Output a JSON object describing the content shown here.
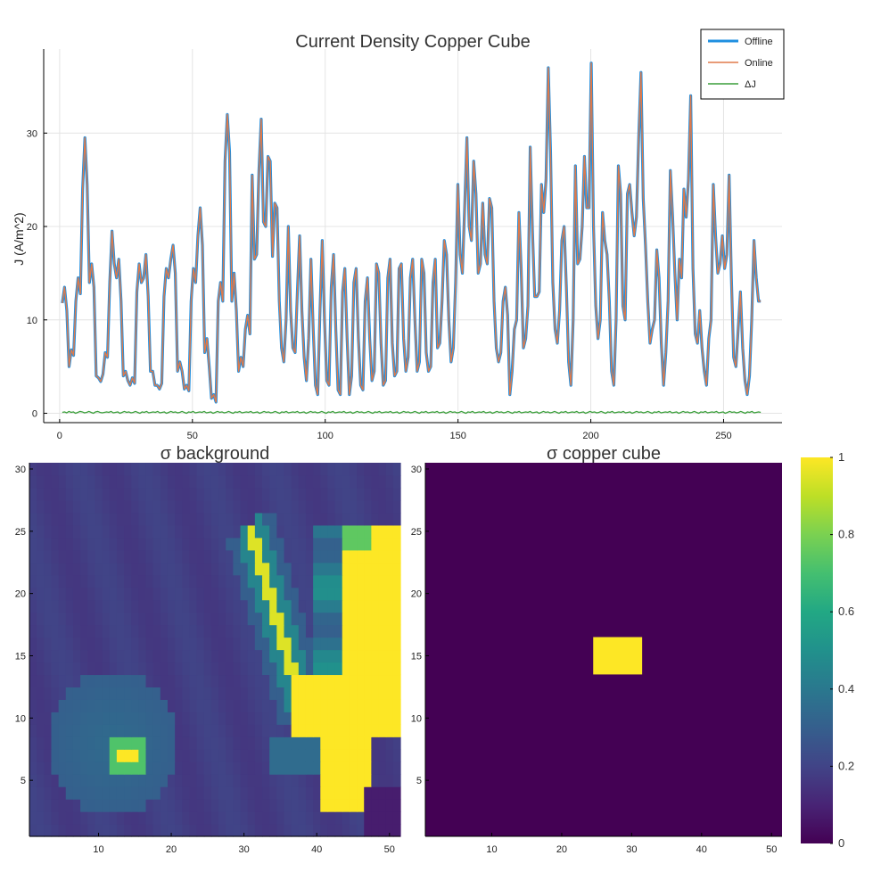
{
  "chart_data": [
    {
      "type": "line",
      "title": "Current Density Copper Cube",
      "xlabel": "",
      "ylabel": "J (A/m^2)",
      "xlim": [
        -6,
        272
      ],
      "ylim": [
        -1,
        39
      ],
      "xticks": [
        0,
        50,
        100,
        150,
        200,
        250
      ],
      "yticks": [
        0,
        10,
        20,
        30
      ],
      "grid": true,
      "legend_position": "top-right",
      "series": [
        {
          "name": "Offline",
          "color": "#1f8fe0",
          "x0": 1,
          "values": [
            11.8,
            13.5,
            11.0,
            5.0,
            6.8,
            6.2,
            12.0,
            14.5,
            12.8,
            24.0,
            29.5,
            24.5,
            14.0,
            16.0,
            13.5,
            4.0,
            3.8,
            3.4,
            4.2,
            6.5,
            6.0,
            14.0,
            19.5,
            16.0,
            14.5,
            16.5,
            12.0,
            4.0,
            4.5,
            3.5,
            3.0,
            3.8,
            3.2,
            13.0,
            16.0,
            14.0,
            14.5,
            17.0,
            12.5,
            4.5,
            4.5,
            3.0,
            3.0,
            2.6,
            3.2,
            12.5,
            15.5,
            14.5,
            16.5,
            18.0,
            15.0,
            4.5,
            5.5,
            4.5,
            2.6,
            3.0,
            2.4,
            12.0,
            15.5,
            14.0,
            19.0,
            22.0,
            18.0,
            6.5,
            8.0,
            5.0,
            1.6,
            2.0,
            1.2,
            12.0,
            14.0,
            12.0,
            27.0,
            32.0,
            28.0,
            12.0,
            15.0,
            11.0,
            4.5,
            6.0,
            5.0,
            9.0,
            10.5,
            8.5,
            25.5,
            16.5,
            17.0,
            26.0,
            31.5,
            20.5,
            20.0,
            27.5,
            27.0,
            16.8,
            22.5,
            22.0,
            12.0,
            7.0,
            5.5,
            10.0,
            20.0,
            11.0,
            7.0,
            6.5,
            13.0,
            19.0,
            11.0,
            6.0,
            3.5,
            8.0,
            16.5,
            9.0,
            3.0,
            2.0,
            11.0,
            18.5,
            10.0,
            3.5,
            3.0,
            13.5,
            17.0,
            9.0,
            2.5,
            2.0,
            13.0,
            15.5,
            8.0,
            2.0,
            4.0,
            14.0,
            15.5,
            8.0,
            3.0,
            2.5,
            12.0,
            14.5,
            8.0,
            3.5,
            4.5,
            16.0,
            15.0,
            7.5,
            3.0,
            3.5,
            14.5,
            16.5,
            7.5,
            4.0,
            4.5,
            15.5,
            16.0,
            8.0,
            4.5,
            6.0,
            14.5,
            16.5,
            10.0,
            4.5,
            5.5,
            16.5,
            15.0,
            6.5,
            4.5,
            5.0,
            14.0,
            16.5,
            7.0,
            7.5,
            12.0,
            18.5,
            17.0,
            10.0,
            5.5,
            7.0,
            14.0,
            24.5,
            17.0,
            15.0,
            22.0,
            29.5,
            20.0,
            18.5,
            27.0,
            23.5,
            15.0,
            16.0,
            22.5,
            17.0,
            16.0,
            23.0,
            22.0,
            12.0,
            7.0,
            5.5,
            6.5,
            12.0,
            13.5,
            10.5,
            2.0,
            4.5,
            9.0,
            10.0,
            21.5,
            15.5,
            7.0,
            8.0,
            11.5,
            28.5,
            19.5,
            12.5,
            12.5,
            13.0,
            24.5,
            21.5,
            25.0,
            37.0,
            28.0,
            14.0,
            9.0,
            7.5,
            11.0,
            18.5,
            20.0,
            13.5,
            5.5,
            3.0,
            10.0,
            26.5,
            16.0,
            16.5,
            20.0,
            27.5,
            22.0,
            22.0,
            37.5,
            20.0,
            11.5,
            8.0,
            10.0,
            21.5,
            18.5,
            17.0,
            12.0,
            4.5,
            3.0,
            10.0,
            26.5,
            23.5,
            11.5,
            10.0,
            23.5,
            24.5,
            21.5,
            19.0,
            21.0,
            29.5,
            36.5,
            23.0,
            18.0,
            12.0,
            7.5,
            9.0,
            10.0,
            17.5,
            14.5,
            7.5,
            3.0,
            6.5,
            12.0,
            26.0,
            21.0,
            15.0,
            10.0,
            16.5,
            14.5,
            24.0,
            21.0,
            25.0,
            34.0,
            15.5,
            8.5,
            7.5,
            11.0,
            7.0,
            4.5,
            3.0,
            8.0,
            10.0,
            24.5,
            19.0,
            15.0,
            16.0,
            19.0,
            15.5,
            17.0,
            25.5,
            14.5,
            6.0,
            5.0,
            9.0,
            13.0,
            7.0,
            3.5,
            2.0,
            4.0,
            10.0,
            18.5,
            14.5,
            12.0,
            12.0
          ]
        },
        {
          "name": "Online",
          "color": "#e07a4a",
          "x0": 1,
          "values": [
            11.8,
            13.5,
            11.0,
            5.0,
            6.8,
            6.2,
            12.0,
            14.5,
            12.8,
            24.0,
            29.5,
            24.5,
            14.0,
            16.0,
            13.5,
            4.0,
            3.8,
            3.4,
            4.2,
            6.5,
            6.0,
            14.0,
            19.5,
            16.0,
            14.5,
            16.5,
            12.0,
            4.0,
            4.5,
            3.5,
            3.0,
            3.8,
            3.2,
            13.0,
            16.0,
            14.0,
            14.5,
            17.0,
            12.5,
            4.5,
            4.5,
            3.0,
            3.0,
            2.6,
            3.2,
            12.5,
            15.5,
            14.5,
            16.5,
            18.0,
            15.0,
            4.5,
            5.5,
            4.5,
            2.6,
            3.0,
            2.4,
            12.0,
            15.5,
            14.0,
            19.0,
            22.0,
            18.0,
            6.5,
            8.0,
            5.0,
            1.6,
            2.0,
            1.2,
            12.0,
            14.0,
            12.0,
            27.0,
            32.0,
            28.0,
            12.0,
            15.0,
            11.0,
            4.5,
            6.0,
            5.0,
            9.0,
            10.5,
            8.5,
            25.5,
            16.5,
            17.0,
            26.0,
            31.5,
            20.5,
            20.0,
            27.5,
            27.0,
            16.8,
            22.5,
            22.0,
            12.0,
            7.0,
            5.5,
            10.0,
            20.0,
            11.0,
            7.0,
            6.5,
            13.0,
            19.0,
            11.0,
            6.0,
            3.5,
            8.0,
            16.5,
            9.0,
            3.0,
            2.0,
            11.0,
            18.5,
            10.0,
            3.5,
            3.0,
            13.5,
            17.0,
            9.0,
            2.5,
            2.0,
            13.0,
            15.5,
            8.0,
            2.0,
            4.0,
            14.0,
            15.5,
            8.0,
            3.0,
            2.5,
            12.0,
            14.5,
            8.0,
            3.5,
            4.5,
            16.0,
            15.0,
            7.5,
            3.0,
            3.5,
            14.5,
            16.5,
            7.5,
            4.0,
            4.5,
            15.5,
            16.0,
            8.0,
            4.5,
            6.0,
            14.5,
            16.5,
            10.0,
            4.5,
            5.5,
            16.5,
            15.0,
            6.5,
            4.5,
            5.0,
            14.0,
            16.5,
            7.0,
            7.5,
            12.0,
            18.5,
            17.0,
            10.0,
            5.5,
            7.0,
            14.0,
            24.5,
            17.0,
            15.0,
            22.0,
            29.5,
            20.0,
            18.5,
            27.0,
            23.5,
            15.0,
            16.0,
            22.5,
            17.0,
            16.0,
            23.0,
            22.0,
            12.0,
            7.0,
            5.5,
            6.5,
            12.0,
            13.5,
            10.5,
            2.0,
            4.5,
            9.0,
            10.0,
            21.5,
            15.5,
            7.0,
            8.0,
            11.5,
            28.5,
            19.5,
            12.5,
            12.5,
            13.0,
            24.5,
            21.5,
            25.0,
            37.0,
            28.0,
            14.0,
            9.0,
            7.5,
            11.0,
            18.5,
            20.0,
            13.5,
            5.5,
            3.0,
            10.0,
            26.5,
            16.0,
            16.5,
            20.0,
            27.5,
            22.0,
            22.0,
            37.5,
            20.0,
            11.5,
            8.0,
            10.0,
            21.5,
            18.5,
            17.0,
            12.0,
            4.5,
            3.0,
            10.0,
            26.5,
            23.5,
            11.5,
            10.0,
            23.5,
            24.5,
            21.5,
            19.0,
            21.0,
            29.5,
            36.5,
            23.0,
            18.0,
            12.0,
            7.5,
            9.0,
            10.0,
            17.5,
            14.5,
            7.5,
            3.0,
            6.5,
            12.0,
            26.0,
            21.0,
            15.0,
            10.0,
            16.5,
            14.5,
            24.0,
            21.0,
            25.0,
            34.0,
            15.5,
            8.5,
            7.5,
            11.0,
            7.0,
            4.5,
            3.0,
            8.0,
            10.0,
            24.5,
            19.0,
            15.0,
            16.0,
            19.0,
            15.5,
            17.0,
            25.5,
            14.5,
            6.0,
            5.0,
            9.0,
            13.0,
            7.0,
            3.5,
            2.0,
            4.0,
            10.0,
            18.5,
            14.5,
            12.0,
            12.0
          ]
        },
        {
          "name": "ΔJ",
          "color": "#3a9e3a",
          "x0": 1,
          "values": [
            0.1,
            0.15,
            0.05,
            0.2,
            0.1,
            0.15,
            0.0,
            0.1,
            0.2,
            0.15,
            0.05,
            0.1,
            0.2,
            0.1,
            0.0,
            0.15,
            0.2,
            0.1,
            0.05,
            0.1,
            0.15,
            0.1,
            0.2,
            0.05,
            0.1,
            0.15,
            0.0,
            0.1,
            0.2,
            0.1,
            0.15,
            0.05,
            0.1,
            0.2,
            0.1,
            0.0,
            0.15,
            0.1,
            0.2,
            0.05,
            0.1,
            0.15,
            0.1,
            0.2,
            0.05,
            0.1,
            0.15,
            0.0,
            0.1,
            0.2,
            0.1,
            0.15,
            0.05,
            0.1,
            0.2,
            0.1,
            0.0,
            0.15,
            0.1,
            0.2,
            0.05,
            0.1,
            0.15,
            0.1,
            0.2,
            0.05,
            0.1,
            0.15,
            0.0,
            0.1,
            0.2,
            0.1,
            0.15,
            0.05,
            0.1,
            0.2,
            0.1,
            0.0,
            0.15,
            0.1,
            0.2,
            0.05,
            0.1,
            0.15,
            0.1,
            0.2,
            0.05,
            0.1,
            0.15,
            0.0,
            0.1,
            0.2,
            0.1,
            0.15,
            0.05,
            0.1,
            0.2,
            0.1,
            0.0,
            0.15,
            0.1,
            0.2,
            0.05,
            0.1,
            0.15,
            0.1,
            0.2,
            0.05,
            0.1,
            0.15,
            0.0,
            0.1,
            0.2,
            0.1,
            0.15,
            0.05,
            0.1,
            0.2,
            0.1,
            0.0,
            0.15,
            0.1,
            0.2,
            0.05,
            0.1,
            0.15,
            0.1,
            0.2,
            0.05,
            0.1,
            0.15,
            0.0,
            0.1,
            0.2,
            0.1,
            0.15,
            0.05,
            0.1,
            0.2,
            0.1,
            0.0,
            0.15,
            0.1,
            0.2,
            0.05,
            0.1,
            0.15,
            0.1,
            0.2,
            0.05,
            0.1,
            0.15,
            0.0,
            0.1,
            0.2,
            0.1,
            0.15,
            0.05,
            0.1,
            0.2,
            0.1,
            0.0,
            0.15,
            0.1,
            0.2,
            0.05,
            0.1,
            0.15,
            0.1,
            0.2,
            0.05,
            0.1,
            0.15,
            0.0,
            0.1,
            0.2,
            0.1,
            0.15,
            0.05,
            0.1,
            0.2,
            0.1,
            0.0,
            0.15,
            0.1,
            0.2,
            0.05,
            0.1,
            0.15,
            0.1,
            0.2,
            0.05,
            0.1,
            0.15,
            0.0,
            0.1,
            0.2,
            0.1,
            0.15,
            0.05,
            0.1,
            0.2,
            0.1,
            0.0,
            0.15,
            0.1,
            0.2,
            0.05,
            0.1,
            0.15,
            0.1,
            0.2,
            0.05,
            0.1,
            0.15,
            0.0,
            0.1,
            0.2,
            0.1,
            0.15,
            0.05,
            0.1,
            0.2,
            0.1,
            0.0,
            0.15,
            0.1,
            0.2,
            0.05,
            0.1,
            0.15,
            0.1,
            0.2,
            0.05,
            0.1,
            0.15,
            0.0,
            0.1,
            0.2,
            0.1,
            0.15,
            0.05,
            0.1,
            0.2,
            0.1,
            0.0,
            0.15,
            0.1,
            0.2,
            0.05,
            0.1,
            0.15,
            0.1,
            0.2,
            0.05,
            0.1,
            0.15,
            0.0,
            0.1,
            0.2,
            0.1,
            0.15,
            0.05,
            0.1,
            0.2,
            0.1,
            0.0,
            0.15,
            0.1,
            0.2,
            0.05,
            0.1,
            0.15,
            0.1,
            0.2,
            0.05,
            0.1,
            0.15,
            0.0,
            0.1,
            0.2,
            0.1,
            0.15,
            0.05,
            0.1,
            0.2,
            0.1,
            0.0,
            0.15,
            0.1,
            0.2,
            0.05,
            0.1,
            0.15,
            0.1,
            0.2,
            0.05,
            0.1,
            0.15,
            0.0,
            0.1,
            0.2,
            0.1,
            0.15,
            0.05,
            0.1,
            0.2,
            0.1,
            0.0,
            0.15,
            0.1,
            0.2,
            0.05,
            0.1,
            0.15,
            0.1
          ]
        }
      ]
    },
    {
      "type": "heatmap",
      "title": "σ background",
      "grid_size": [
        51,
        30
      ],
      "xlim": [
        0.5,
        51.5
      ],
      "ylim": [
        0.5,
        30.5
      ],
      "xticks": [
        10,
        20,
        30,
        40,
        50
      ],
      "yticks": [
        5,
        10,
        15,
        20,
        25,
        30
      ],
      "base_level": 0.18,
      "features": [
        {
          "kind": "diagonal-band",
          "from": [
            31,
            25
          ],
          "to": [
            38,
            11
          ],
          "value": 0.95,
          "halo": 0.45
        },
        {
          "kind": "bright-region",
          "x_range": [
            35,
            51
          ],
          "y_range": [
            2,
            24
          ],
          "value": 1.0
        },
        {
          "kind": "hotspot",
          "center": [
            14,
            7
          ],
          "value": 1.0,
          "halo": 0.7
        },
        {
          "kind": "halo-region",
          "center": [
            12,
            9
          ],
          "value": 0.3
        }
      ]
    },
    {
      "type": "heatmap",
      "title": "σ copper cube",
      "grid_size": [
        51,
        30
      ],
      "xlim": [
        0.5,
        51.5
      ],
      "ylim": [
        0.5,
        30.5
      ],
      "xticks": [
        10,
        20,
        30,
        40,
        50
      ],
      "yticks": [
        5,
        10,
        15,
        20,
        25,
        30
      ],
      "base_level": 0.0,
      "block": {
        "x_range": [
          25,
          31
        ],
        "y_range": [
          14,
          16
        ],
        "value": 1.0
      }
    },
    {
      "type": "colorbar",
      "colormap": "viridis",
      "range": [
        0,
        1
      ],
      "ticks": [
        "0",
        "0.2",
        "0.4",
        "0.6",
        "0.8",
        "1"
      ]
    }
  ]
}
